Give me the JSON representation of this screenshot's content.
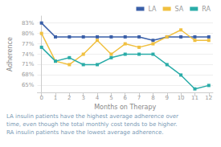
{
  "chart_data": {
    "type": "line",
    "x": [
      0,
      1,
      2,
      3,
      4,
      5,
      6,
      7,
      8,
      9,
      10,
      11,
      12
    ],
    "series": [
      {
        "name": "LA",
        "color": "#3A5FA8",
        "values": [
          83,
          79,
          79,
          79,
          79,
          79,
          79,
          79,
          78,
          79,
          79,
          79,
          79
        ]
      },
      {
        "name": "SA",
        "color": "#F0C040",
        "values": [
          80,
          72,
          71,
          74,
          78,
          74,
          77,
          76,
          77,
          79,
          81,
          78,
          78
        ]
      },
      {
        "name": "RA",
        "color": "#2AACA8",
        "values": [
          76,
          72,
          73,
          71,
          71,
          73,
          74,
          74,
          74,
          71,
          68,
          64,
          65
        ]
      }
    ],
    "xlabel": "Months on Therapy",
    "ylabel": "Adherence",
    "xlim": [
      -0.3,
      12.3
    ],
    "xticks": [
      0,
      1,
      2,
      3,
      4,
      5,
      6,
      7,
      8,
      9,
      10,
      11,
      12
    ],
    "ylim": [
      63,
      85
    ],
    "yticks": [
      {
        "value": 65,
        "label": "65%"
      },
      {
        "value": 68,
        "label": "68%"
      },
      {
        "value": 71,
        "label": "71%"
      },
      {
        "value": 74,
        "label": "74%"
      },
      {
        "value": 77,
        "label": "77%"
      },
      {
        "value": 80,
        "label": "80%"
      },
      {
        "value": 83,
        "label": "83%"
      }
    ],
    "grid": true,
    "legend": "upper right",
    "marker": "square",
    "annotations": [
      "LA insulin patients have the highest average adherence over",
      "time, even though the total monthly cost tends to be higher.",
      "RA insulin patients have the lowest average adherence."
    ]
  }
}
